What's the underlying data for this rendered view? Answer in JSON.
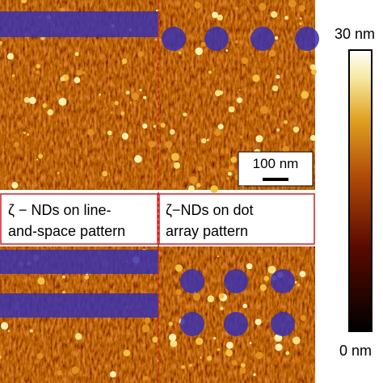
{
  "colorbar": {
    "max_label": "30 nm",
    "min_label": "0 nm"
  },
  "scale_bar": {
    "label": "100 nm"
  },
  "panels": [
    {
      "lines": [
        "ζ − NDs on line-",
        "and-space pattern"
      ]
    },
    {
      "lines": [
        "ζ−NDs on dot",
        "array pattern"
      ]
    }
  ]
}
